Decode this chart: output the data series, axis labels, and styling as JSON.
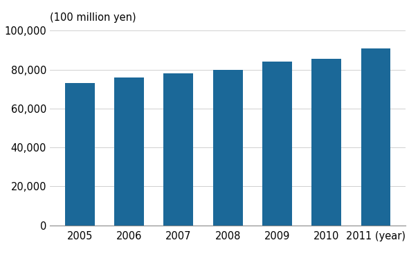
{
  "categories": [
    "2005",
    "2006",
    "2007",
    "2008",
    "2009",
    "2010",
    "2011"
  ],
  "values": [
    73000,
    76000,
    78200,
    79800,
    84000,
    85500,
    91000
  ],
  "bar_color": "#1B6898",
  "ylabel": "(100 million yen)",
  "xlabel_suffix": "(year)",
  "ylim": [
    0,
    100000
  ],
  "yticks": [
    0,
    20000,
    40000,
    60000,
    80000,
    100000
  ],
  "background_color": "#ffffff",
  "bar_width": 0.6,
  "ylabel_fontsize": 10.5,
  "tick_fontsize": 10.5,
  "grid_color": "#d0d0d0"
}
